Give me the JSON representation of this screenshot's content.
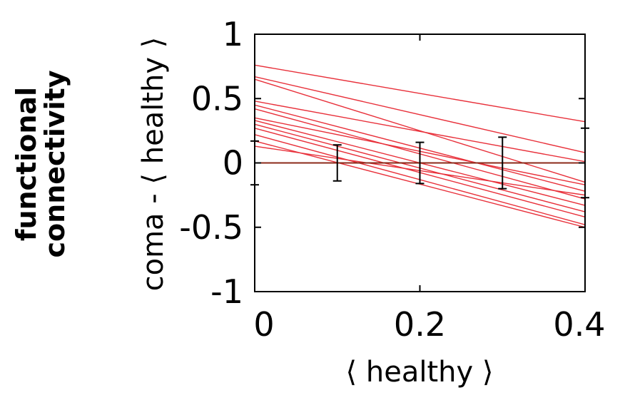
{
  "side_title": {
    "line1": "functional",
    "line2": "connectivity"
  },
  "chart_data": {
    "type": "line",
    "title": "",
    "xlabel": "⟨ healthy ⟩",
    "ylabel": "coma - ⟨ healthy ⟩",
    "xlim": [
      0,
      0.4
    ],
    "ylim": [
      -1,
      1
    ],
    "x_ticks": [
      "0",
      "0.2",
      "0.4"
    ],
    "y_ticks": [
      "1",
      "0.5",
      "0",
      "-0.5",
      "-1"
    ],
    "grid": false,
    "line_color": "#e8303a",
    "zero_line_color": "#8b2a1a",
    "series": [
      {
        "values": [
          [
            0,
            0.76
          ],
          [
            0.4,
            0.32
          ]
        ]
      },
      {
        "values": [
          [
            0,
            0.67
          ],
          [
            0.4,
            0.08
          ]
        ]
      },
      {
        "values": [
          [
            0,
            0.65
          ],
          [
            0.4,
            -0.15
          ]
        ]
      },
      {
        "values": [
          [
            0,
            0.48
          ],
          [
            0.4,
            0.01
          ]
        ]
      },
      {
        "values": [
          [
            0,
            0.45
          ],
          [
            0.4,
            -0.22
          ]
        ]
      },
      {
        "values": [
          [
            0,
            0.42
          ],
          [
            0.4,
            -0.28
          ]
        ]
      },
      {
        "values": [
          [
            0,
            0.35
          ],
          [
            0.4,
            -0.17
          ]
        ]
      },
      {
        "values": [
          [
            0,
            0.33
          ],
          [
            0.4,
            -0.33
          ]
        ]
      },
      {
        "values": [
          [
            0,
            0.3
          ],
          [
            0.4,
            -0.38
          ]
        ]
      },
      {
        "values": [
          [
            0,
            0.27
          ],
          [
            0.4,
            -0.42
          ]
        ]
      },
      {
        "values": [
          [
            0,
            0.22
          ],
          [
            0.4,
            -0.48
          ]
        ]
      },
      {
        "values": [
          [
            0,
            0.17
          ],
          [
            0.4,
            -0.5
          ]
        ]
      },
      {
        "values": [
          [
            0,
            0.13
          ],
          [
            0.4,
            -0.25
          ]
        ]
      },
      {
        "values": [
          [
            0,
            0.0
          ],
          [
            0.4,
            0.0
          ]
        ]
      }
    ],
    "error_bars": [
      {
        "x": 0.0,
        "y": 0.0,
        "err": 0.17
      },
      {
        "x": 0.1,
        "y": 0.0,
        "err": 0.14
      },
      {
        "x": 0.2,
        "y": 0.0,
        "err": 0.16
      },
      {
        "x": 0.3,
        "y": 0.0,
        "err": 0.2
      },
      {
        "x": 0.4,
        "y": 0.0,
        "err": 0.27
      }
    ]
  }
}
